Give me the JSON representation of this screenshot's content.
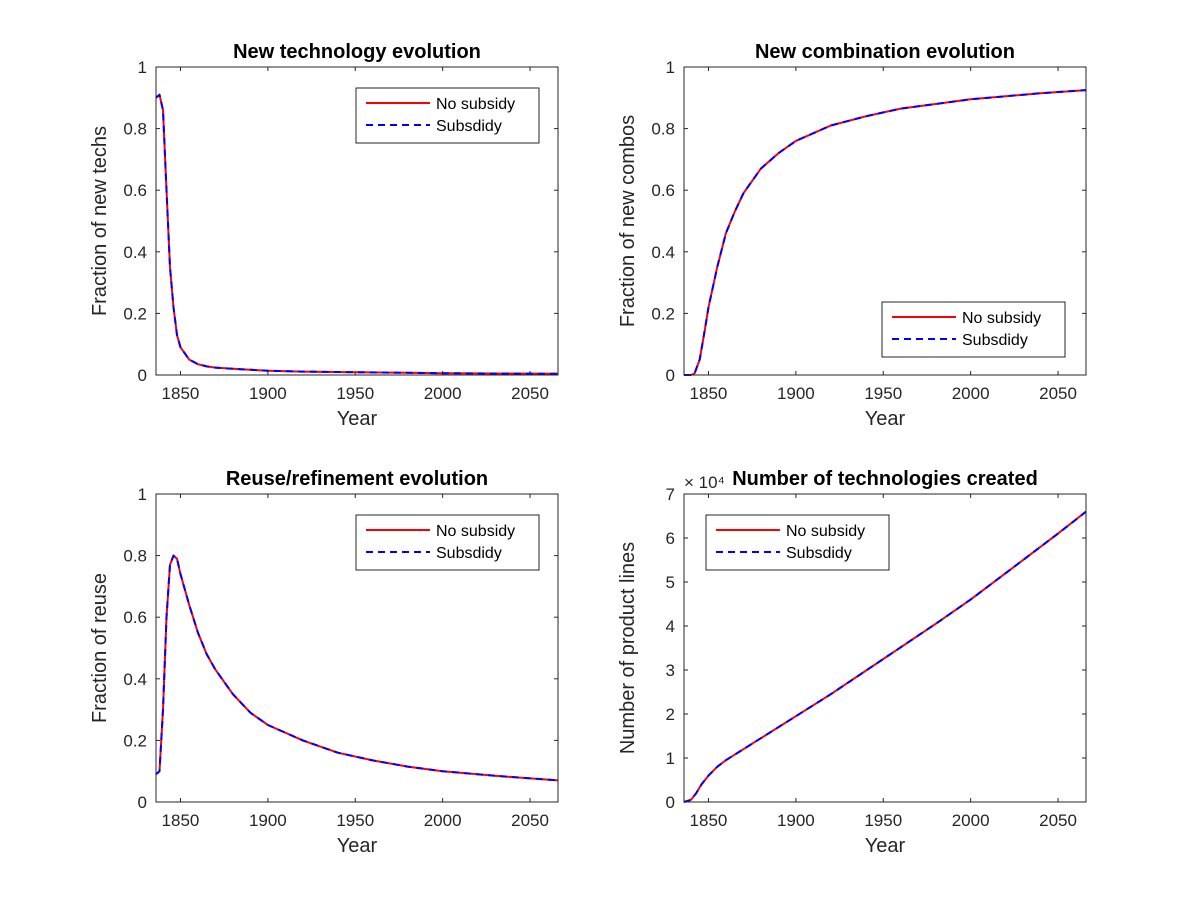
{
  "chart_data": [
    {
      "type": "line",
      "title": "New technology evolution",
      "xlabel": "Year",
      "ylabel": "Fraction of new techs",
      "xlim": [
        1836,
        2066
      ],
      "ylim": [
        0,
        1
      ],
      "xticks": [
        "1850",
        "1900",
        "1950",
        "2000",
        "2050"
      ],
      "yticks": [
        "0",
        "0.2",
        "0.4",
        "0.6",
        "0.8",
        "1"
      ],
      "exponent_label": "",
      "legend_position": "top-right",
      "series": [
        {
          "name": "No subsidy",
          "color": "#ff0000",
          "style": "solid",
          "x": [
            1836,
            1838,
            1840,
            1842,
            1844,
            1846,
            1848,
            1850,
            1855,
            1860,
            1865,
            1870,
            1880,
            1890,
            1900,
            1920,
            1950,
            1980,
            2000,
            2030,
            2066
          ],
          "y": [
            0.9,
            0.91,
            0.86,
            0.6,
            0.35,
            0.22,
            0.13,
            0.09,
            0.05,
            0.035,
            0.028,
            0.024,
            0.02,
            0.017,
            0.014,
            0.011,
            0.009,
            0.007,
            0.006,
            0.005,
            0.004
          ]
        },
        {
          "name": "Subsdidy",
          "color": "#0000ff",
          "style": "dashed",
          "x": [
            1836,
            1838,
            1840,
            1842,
            1844,
            1846,
            1848,
            1850,
            1855,
            1860,
            1865,
            1870,
            1880,
            1890,
            1900,
            1920,
            1950,
            1980,
            2000,
            2030,
            2066
          ],
          "y": [
            0.9,
            0.91,
            0.86,
            0.6,
            0.35,
            0.22,
            0.13,
            0.09,
            0.05,
            0.035,
            0.028,
            0.024,
            0.02,
            0.017,
            0.014,
            0.011,
            0.009,
            0.007,
            0.006,
            0.005,
            0.004
          ]
        }
      ]
    },
    {
      "type": "line",
      "title": "New combination evolution",
      "xlabel": "Year",
      "ylabel": "Fraction of new combos",
      "xlim": [
        1836,
        2066
      ],
      "ylim": [
        0,
        1
      ],
      "xticks": [
        "1850",
        "1900",
        "1950",
        "2000",
        "2050"
      ],
      "yticks": [
        "0",
        "0.2",
        "0.4",
        "0.6",
        "0.8",
        "1"
      ],
      "exponent_label": "",
      "legend_position": "bottom-right",
      "series": [
        {
          "name": "No subsidy",
          "color": "#ff0000",
          "style": "solid",
          "x": [
            1836,
            1840,
            1842,
            1845,
            1848,
            1850,
            1855,
            1860,
            1865,
            1870,
            1880,
            1890,
            1900,
            1920,
            1940,
            1960,
            1980,
            2000,
            2020,
            2040,
            2066
          ],
          "y": [
            0,
            0,
            0.005,
            0.05,
            0.15,
            0.22,
            0.35,
            0.46,
            0.53,
            0.59,
            0.67,
            0.72,
            0.76,
            0.81,
            0.84,
            0.865,
            0.88,
            0.895,
            0.905,
            0.915,
            0.925
          ]
        },
        {
          "name": "Subsdidy",
          "color": "#0000ff",
          "style": "dashed",
          "x": [
            1836,
            1840,
            1842,
            1845,
            1848,
            1850,
            1855,
            1860,
            1865,
            1870,
            1880,
            1890,
            1900,
            1920,
            1940,
            1960,
            1980,
            2000,
            2020,
            2040,
            2066
          ],
          "y": [
            0,
            0,
            0.005,
            0.05,
            0.15,
            0.22,
            0.35,
            0.46,
            0.53,
            0.59,
            0.67,
            0.72,
            0.76,
            0.81,
            0.84,
            0.865,
            0.88,
            0.895,
            0.905,
            0.915,
            0.925
          ]
        }
      ]
    },
    {
      "type": "line",
      "title": "Reuse/refinement evolution",
      "xlabel": "Year",
      "ylabel": "Fraction of reuse",
      "xlim": [
        1836,
        2066
      ],
      "ylim": [
        0,
        1
      ],
      "xticks": [
        "1850",
        "1900",
        "1950",
        "2000",
        "2050"
      ],
      "yticks": [
        "0",
        "0.2",
        "0.4",
        "0.6",
        "0.8",
        "1"
      ],
      "exponent_label": "",
      "legend_position": "top-right",
      "series": [
        {
          "name": "No subsidy",
          "color": "#ff0000",
          "style": "solid",
          "x": [
            1836,
            1838,
            1840,
            1842,
            1844,
            1846,
            1848,
            1850,
            1855,
            1860,
            1865,
            1870,
            1880,
            1890,
            1900,
            1920,
            1940,
            1960,
            1980,
            2000,
            2030,
            2066
          ],
          "y": [
            0.09,
            0.1,
            0.3,
            0.6,
            0.77,
            0.8,
            0.79,
            0.74,
            0.64,
            0.55,
            0.48,
            0.43,
            0.35,
            0.29,
            0.25,
            0.2,
            0.16,
            0.135,
            0.115,
            0.1,
            0.085,
            0.07
          ]
        },
        {
          "name": "Subsdidy",
          "color": "#0000ff",
          "style": "dashed",
          "x": [
            1836,
            1838,
            1840,
            1842,
            1844,
            1846,
            1848,
            1850,
            1855,
            1860,
            1865,
            1870,
            1880,
            1890,
            1900,
            1920,
            1940,
            1960,
            1980,
            2000,
            2030,
            2066
          ],
          "y": [
            0.09,
            0.1,
            0.3,
            0.6,
            0.77,
            0.8,
            0.79,
            0.74,
            0.64,
            0.55,
            0.48,
            0.43,
            0.35,
            0.29,
            0.25,
            0.2,
            0.16,
            0.135,
            0.115,
            0.1,
            0.085,
            0.07
          ]
        }
      ]
    },
    {
      "type": "line",
      "title": "Number of technologies created",
      "xlabel": "Year",
      "ylabel": "Number of product lines",
      "xlim": [
        1836,
        2066
      ],
      "ylim": [
        0,
        70000
      ],
      "xticks": [
        "1850",
        "1900",
        "1950",
        "2000",
        "2050"
      ],
      "yticks": [
        "0",
        "1",
        "2",
        "3",
        "4",
        "5",
        "6",
        "7"
      ],
      "exponent_label": "× 10⁴",
      "legend_position": "top-left",
      "series": [
        {
          "name": "No subsidy",
          "color": "#ff0000",
          "style": "solid",
          "x": [
            1836,
            1840,
            1843,
            1846,
            1850,
            1855,
            1860,
            1870,
            1880,
            1900,
            1920,
            1950,
            1980,
            2000,
            2020,
            2050,
            2066
          ],
          "y": [
            0,
            500,
            2000,
            4000,
            6000,
            8000,
            9500,
            12000,
            14500,
            19500,
            24500,
            32500,
            40500,
            46000,
            52000,
            61000,
            66000
          ]
        },
        {
          "name": "Subsdidy",
          "color": "#0000ff",
          "style": "dashed",
          "x": [
            1836,
            1840,
            1843,
            1846,
            1850,
            1855,
            1860,
            1870,
            1880,
            1900,
            1920,
            1950,
            1980,
            2000,
            2020,
            2050,
            2066
          ],
          "y": [
            0,
            500,
            2000,
            4000,
            6000,
            8000,
            9500,
            12000,
            14500,
            19500,
            24500,
            32500,
            40500,
            46000,
            52000,
            61000,
            66000
          ]
        }
      ]
    }
  ]
}
